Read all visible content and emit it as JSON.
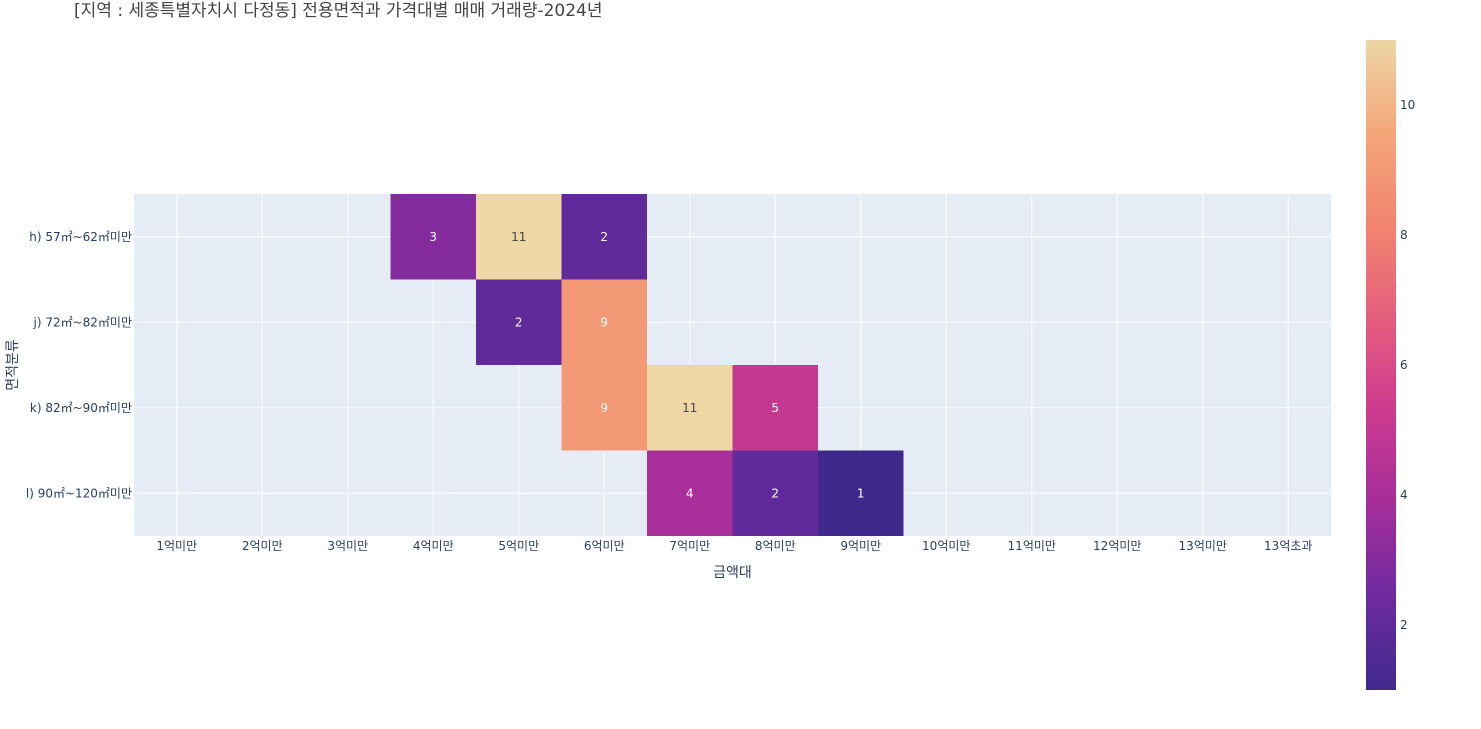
{
  "chart_data": {
    "type": "heatmap",
    "title": "[지역 : 세종특별자치시  다정동] 전용면적과 가격대별 매매 거래량-2024년",
    "xlabel": "금액대",
    "ylabel": "면적분류",
    "x_categories": [
      "1억미만",
      "2억미만",
      "3억미만",
      "4억미만",
      "5억미만",
      "6억미만",
      "7억미만",
      "8억미만",
      "9억미만",
      "10억미만",
      "11억미만",
      "12억미만",
      "13억미만",
      "13억초과"
    ],
    "y_categories": [
      "h) 57㎡~62㎡미만",
      "j) 72㎡~82㎡미만",
      "k) 82㎡~90㎡미만",
      "l) 90㎡~120㎡미만"
    ],
    "values": [
      [
        null,
        null,
        null,
        3,
        11,
        2,
        null,
        null,
        null,
        null,
        null,
        null,
        null,
        null
      ],
      [
        null,
        null,
        null,
        null,
        2,
        9,
        null,
        null,
        null,
        null,
        null,
        null,
        null,
        null
      ],
      [
        null,
        null,
        null,
        null,
        null,
        9,
        11,
        5,
        null,
        null,
        null,
        null,
        null,
        null
      ],
      [
        null,
        null,
        null,
        null,
        null,
        null,
        4,
        2,
        1,
        null,
        null,
        null,
        null,
        null
      ]
    ],
    "zmin": 1,
    "zmax": 11,
    "colorscale": [
      "#0d0887",
      "#46039f",
      "#7201a8",
      "#9c179e",
      "#bd3786",
      "#d8576b",
      "#ed7953",
      "#fb9f3a",
      "#fdca26",
      "#f0f921"
    ],
    "plasma_like_colors": [
      "#3f2a8c",
      "#6e2aa0",
      "#a52e9b",
      "#cc3a8f",
      "#e45e7f",
      "#f2846f",
      "#f4a679",
      "#eed6a5"
    ],
    "colorbar_ticks": [
      2,
      4,
      6,
      8,
      10
    ],
    "plot_bg": "#e5ecf6",
    "grid": true
  }
}
